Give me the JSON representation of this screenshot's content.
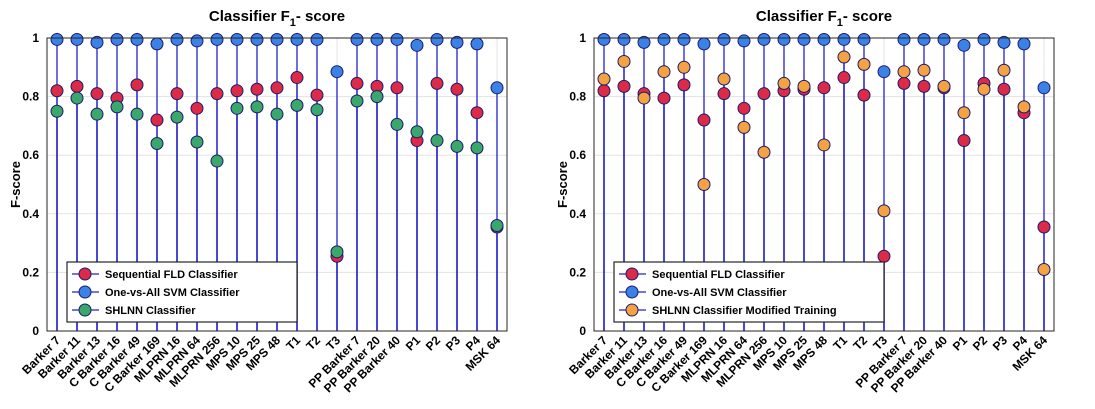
{
  "chart_data": [
    {
      "type": "scatter",
      "title": "Classifier F",
      "title_sub": "1",
      "title_tail": "- score",
      "ylabel": "F-score",
      "xlabel": "",
      "ylim": [
        0,
        1
      ],
      "yticks": [
        "0",
        "0.2",
        "0.4",
        "0.6",
        "0.8",
        "1"
      ],
      "grid": true,
      "legend_position": "bottom-left",
      "categories": [
        "Barker 7",
        "Barker 11",
        "Barker 13",
        "C Barker 16",
        "C Barker 49",
        "C Barker 169",
        "MLPRN 16",
        "MLPRN 64",
        "MLPRN 256",
        "MPS 10",
        "MPS 25",
        "MPS 48",
        "T1",
        "T2",
        "T3",
        "PP Barker 7",
        "PP Barker 20",
        "PP Barker 40",
        "P1",
        "P2",
        "P3",
        "P4",
        "MSK 64"
      ],
      "series": [
        {
          "name": "Sequential FLD Classifier",
          "color": "#dc2a47",
          "values": [
            0.82,
            0.835,
            0.81,
            0.795,
            0.84,
            0.72,
            0.81,
            0.76,
            0.81,
            0.82,
            0.825,
            0.83,
            0.865,
            0.805,
            0.255,
            0.845,
            0.835,
            0.83,
            0.65,
            0.845,
            0.825,
            0.745,
            0.355
          ]
        },
        {
          "name": "One-vs-All SVM Classifier",
          "color": "#3b82e6",
          "values": [
            0.995,
            0.995,
            0.985,
            0.995,
            0.995,
            0.98,
            0.995,
            0.99,
            0.995,
            0.995,
            0.995,
            0.995,
            0.995,
            0.995,
            0.885,
            0.995,
            0.995,
            0.995,
            0.975,
            0.995,
            0.985,
            0.98,
            0.83
          ]
        },
        {
          "name": "SHLNN Classifier",
          "color": "#3aa86a",
          "values": [
            0.75,
            0.795,
            0.74,
            0.765,
            0.74,
            0.64,
            0.73,
            0.645,
            0.58,
            0.76,
            0.765,
            0.74,
            0.77,
            0.755,
            0.27,
            0.785,
            0.8,
            0.705,
            0.68,
            0.65,
            0.63,
            0.625,
            0.36
          ]
        }
      ]
    },
    {
      "type": "scatter",
      "title": "Classifier F",
      "title_sub": "1",
      "title_tail": "- score",
      "ylabel": "F-score",
      "xlabel": "",
      "ylim": [
        0,
        1
      ],
      "yticks": [
        "0",
        "0.2",
        "0.4",
        "0.6",
        "0.8",
        "1"
      ],
      "grid": true,
      "legend_position": "bottom-left",
      "categories": [
        "Barker 7",
        "Barker 11",
        "Barker 13",
        "C Barker 16",
        "C Barker 49",
        "C Barker 169",
        "MLPRN 16",
        "MLPRN 64",
        "MLPRN 256",
        "MPS 10",
        "MPS 25",
        "MPS 48",
        "T1",
        "T2",
        "T3",
        "PP Barker 7",
        "PP Barker 20",
        "PP Barker 40",
        "P1",
        "P2",
        "P3",
        "P4",
        "MSK 64"
      ],
      "series": [
        {
          "name": "Sequential FLD Classifier",
          "color": "#dc2a47",
          "values": [
            0.82,
            0.835,
            0.81,
            0.795,
            0.84,
            0.72,
            0.81,
            0.76,
            0.81,
            0.82,
            0.825,
            0.83,
            0.865,
            0.805,
            0.255,
            0.845,
            0.835,
            0.83,
            0.65,
            0.845,
            0.825,
            0.745,
            0.355
          ]
        },
        {
          "name": "One-vs-All SVM Classifier",
          "color": "#3b82e6",
          "values": [
            0.995,
            0.995,
            0.985,
            0.995,
            0.995,
            0.98,
            0.995,
            0.99,
            0.995,
            0.995,
            0.995,
            0.995,
            0.995,
            0.995,
            0.885,
            0.995,
            0.995,
            0.995,
            0.975,
            0.995,
            0.985,
            0.98,
            0.83
          ]
        },
        {
          "name": "SHLNN Classifier Modified Training",
          "color": "#f5a340",
          "values": [
            0.86,
            0.92,
            0.795,
            0.885,
            0.9,
            0.5,
            0.86,
            0.695,
            0.61,
            0.845,
            0.835,
            0.635,
            0.935,
            0.91,
            0.41,
            0.885,
            0.89,
            0.835,
            0.745,
            0.825,
            0.89,
            0.765,
            0.21
          ]
        }
      ]
    }
  ]
}
